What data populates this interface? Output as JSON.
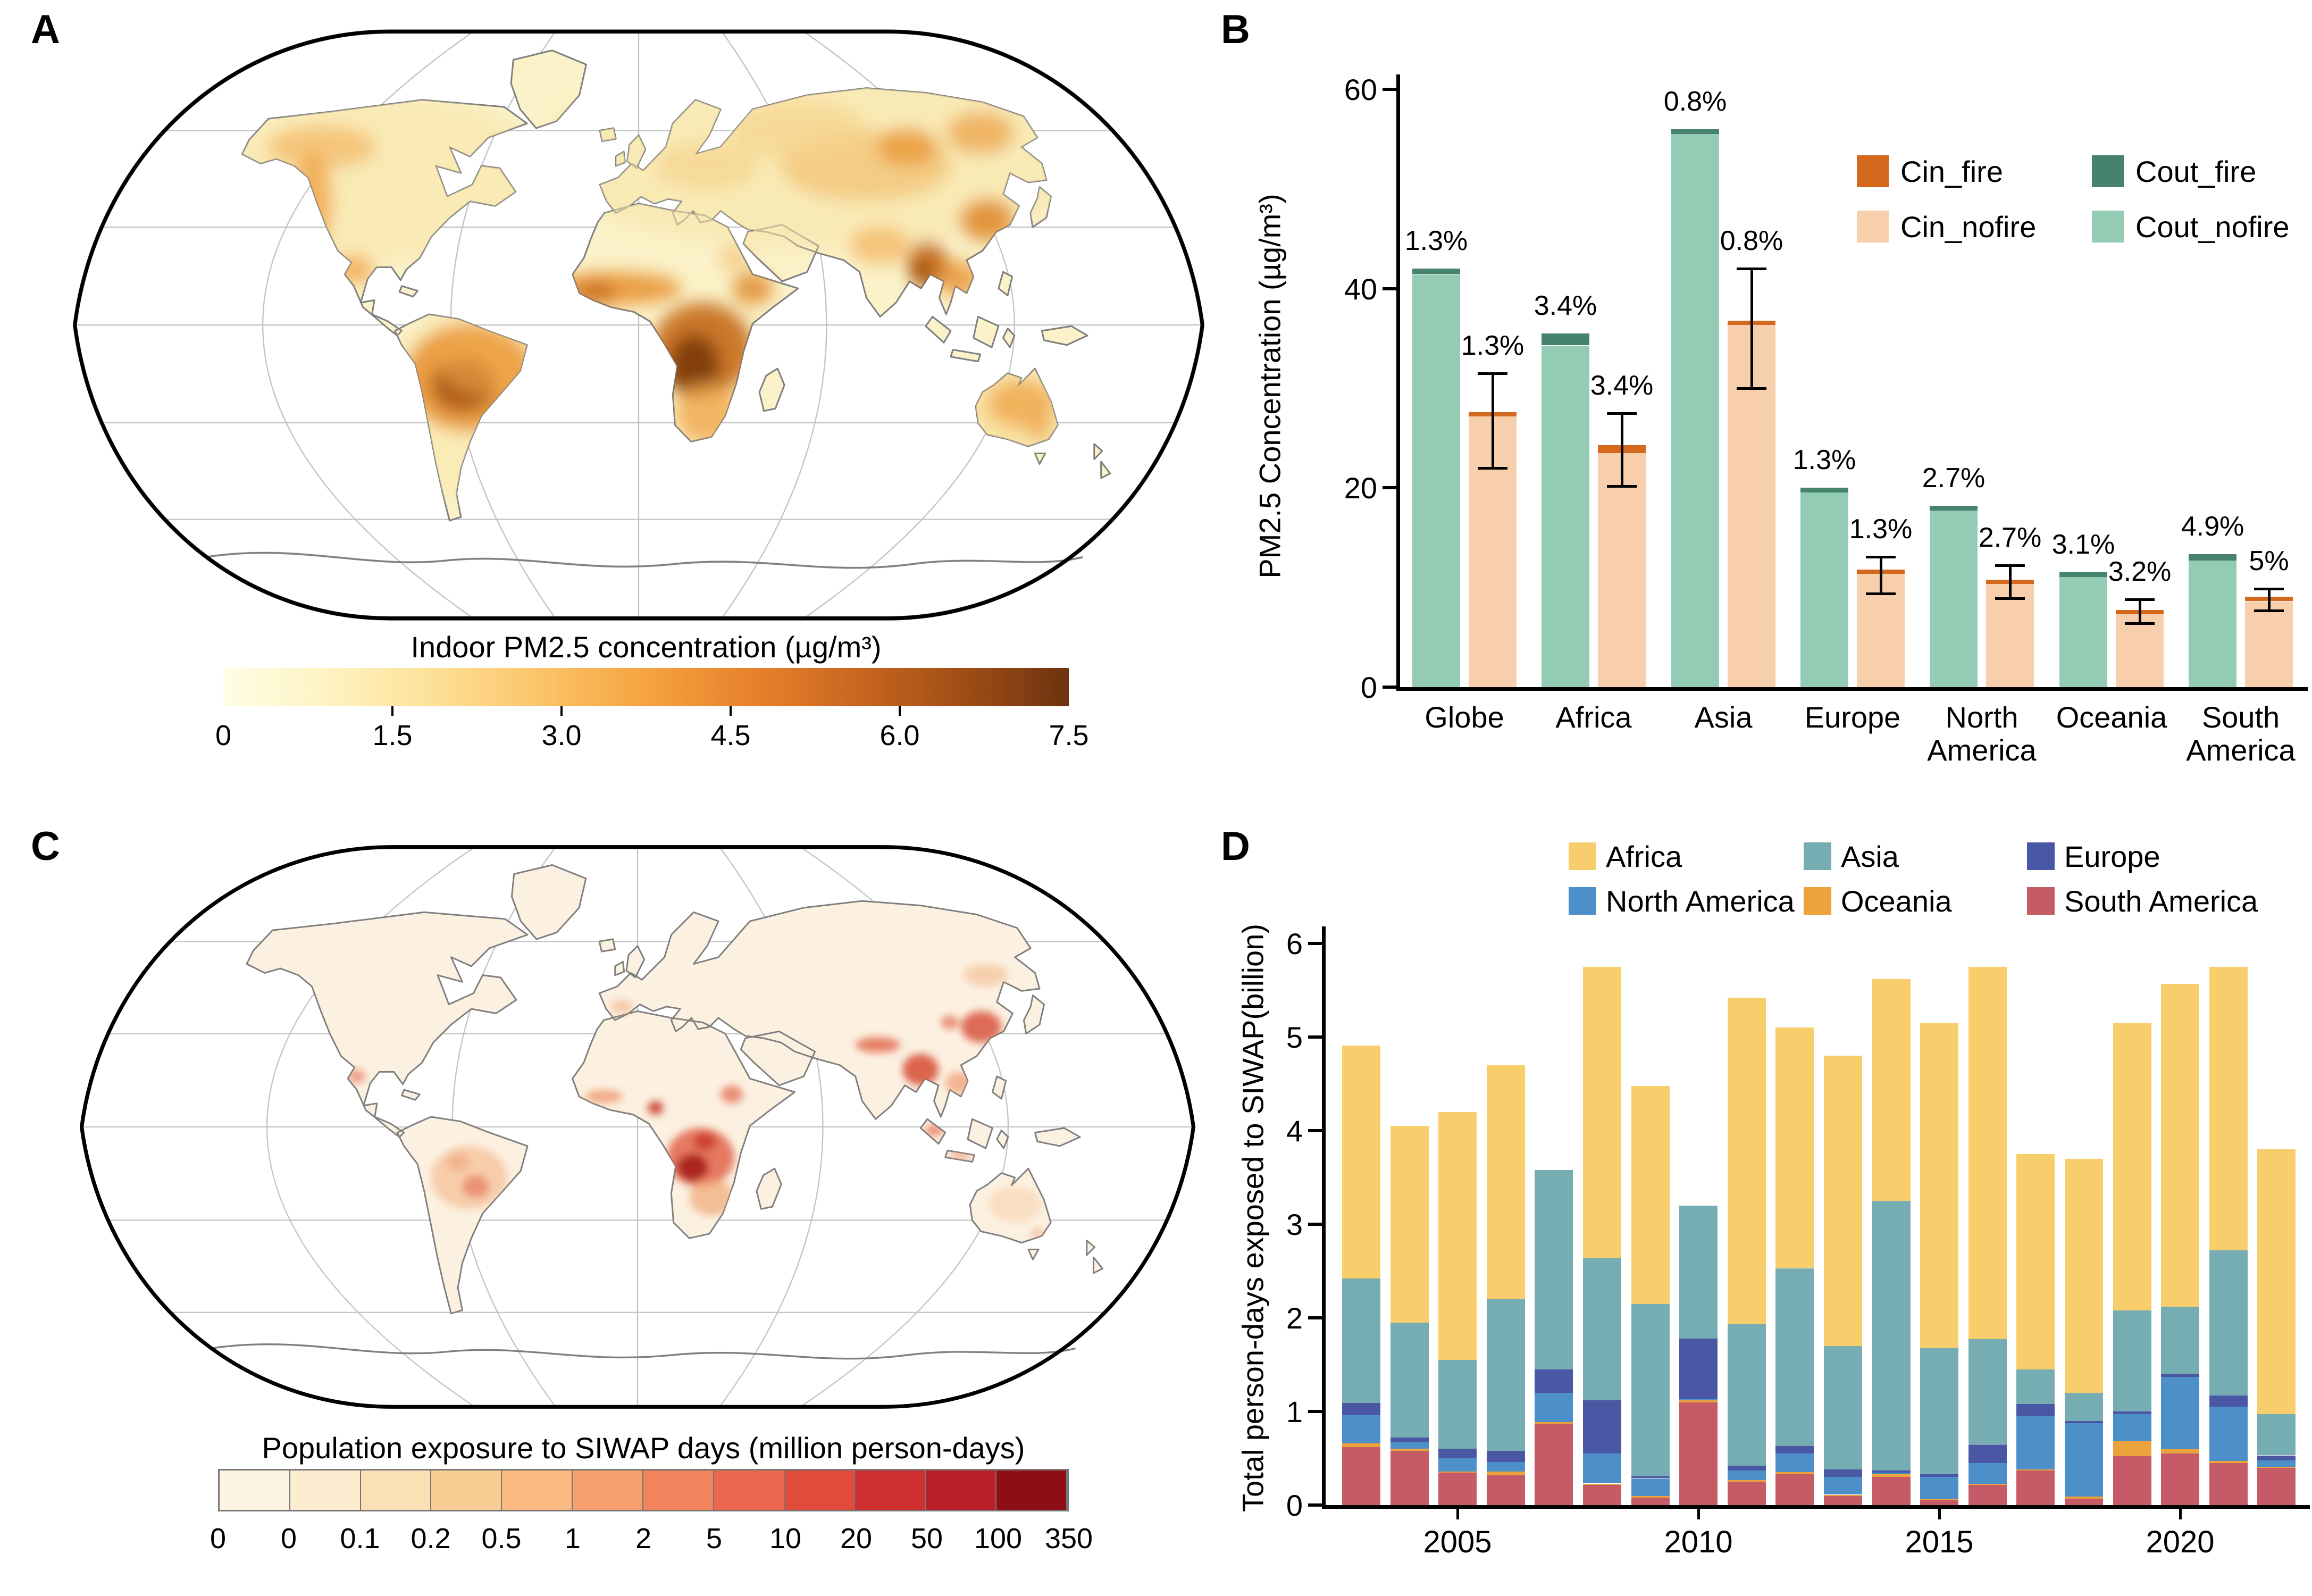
{
  "figure": {
    "panel_labels": {
      "A": "A",
      "B": "B",
      "C": "C",
      "D": "D"
    }
  },
  "panelA": {
    "colorbar_title": "Indoor PM2.5 concentration (µg/m³)",
    "colorbar_ticks": [
      "0",
      "1.5",
      "3.0",
      "4.5",
      "6.0",
      "7.5"
    ],
    "colorbar_gradient": [
      "#FFFDE6",
      "#FEF3C2",
      "#FDE096",
      "#FBC468",
      "#F5A341",
      "#E8822B",
      "#C9661F",
      "#A04E16",
      "#6E3310"
    ]
  },
  "panelC": {
    "colorbar_title": "Population exposure to SIWAP days (million person-days)",
    "colorbar_ticks": [
      "0",
      "0",
      "0.1",
      "0.2",
      "0.5",
      "1",
      "2",
      "5",
      "10",
      "20",
      "50",
      "100",
      "350"
    ],
    "colorbar_colors": [
      "#FDF4E3",
      "#FCEDD1",
      "#FBE0B5",
      "#FACD94",
      "#F9B981",
      "#F69E6D",
      "#F2835C",
      "#EC674D",
      "#E04B3C",
      "#D02F2F",
      "#B81F26",
      "#8F0E16"
    ]
  },
  "chart_data": [
    {
      "type": "bar",
      "panel": "B",
      "title": "",
      "xlabel": "",
      "ylabel": "PM2.5 Concentration (µg/m³)",
      "ylim": [
        0,
        60
      ],
      "yticks": [
        "0",
        "20",
        "40",
        "60"
      ],
      "categories": [
        [
          "Globe"
        ],
        [
          "Africa"
        ],
        [
          "Asia"
        ],
        [
          "Europe"
        ],
        [
          "North",
          "America"
        ],
        [
          "Oceania"
        ],
        [
          "South",
          "America"
        ]
      ],
      "legend": [
        {
          "label": "Cin_fire",
          "color": "#D4691E"
        },
        {
          "label": "Cin_nofire",
          "color": "#F8CFAC"
        },
        {
          "label": "Cout_fire",
          "color": "#46836D"
        },
        {
          "label": "Cout_nofire",
          "color": "#93CBB4"
        }
      ],
      "series": {
        "cout_nofire": [
          41.4,
          34.3,
          55.5,
          19.7,
          17.7,
          11.2,
          12.7
        ],
        "cout_fire": [
          0.6,
          1.2,
          0.5,
          0.3,
          0.5,
          0.35,
          0.65
        ],
        "cin_nofire": [
          27.2,
          23.5,
          36.5,
          11.6,
          10.5,
          7.5,
          8.6
        ],
        "cin_fire": [
          0.4,
          0.8,
          0.3,
          0.2,
          0.3,
          0.25,
          0.45
        ],
        "cin_err_low": [
          22.0,
          20.2,
          30.0,
          9.4,
          8.9,
          6.4,
          7.7
        ],
        "cin_err_high": [
          31.5,
          27.5,
          42.0,
          13.1,
          12.2,
          8.8,
          9.9
        ]
      },
      "bar_labels": {
        "out": [
          "1.3%",
          "3.4%",
          "0.8%",
          "1.3%",
          "2.7%",
          "3.1%",
          "4.9%"
        ],
        "in": [
          "1.3%",
          "3.4%",
          "0.8%",
          "1.3%",
          "2.7%",
          "3.2%",
          "5%"
        ]
      }
    },
    {
      "type": "stacked-bar",
      "panel": "D",
      "title": "",
      "xlabel": "",
      "ylabel": "Total person-days exposed to SIWAP(billion)",
      "ylim": [
        0,
        6
      ],
      "yticks": [
        "0",
        "1",
        "2",
        "3",
        "4",
        "5",
        "6"
      ],
      "years": [
        2003,
        2004,
        2005,
        2006,
        2007,
        2008,
        2009,
        2010,
        2011,
        2012,
        2013,
        2014,
        2015,
        2016,
        2017,
        2018,
        2019,
        2020,
        2021,
        2022
      ],
      "xtick_years": [
        2005,
        2010,
        2015,
        2020
      ],
      "legend": [
        {
          "label": "Africa",
          "color": "#F7CE6B"
        },
        {
          "label": "Asia",
          "color": "#76ADB2"
        },
        {
          "label": "Europe",
          "color": "#4A57A5"
        },
        {
          "label": "North America",
          "color": "#4D8FC9"
        },
        {
          "label": "Oceania",
          "color": "#EDA33C"
        },
        {
          "label": "South America",
          "color": "#C45B66"
        }
      ],
      "stack_order": [
        "South America",
        "Oceania",
        "North America",
        "Europe",
        "Asia",
        "Africa"
      ],
      "series": [
        {
          "name": "Africa",
          "values": [
            2.49,
            2.1,
            2.65,
            2.5,
            0,
            3.11,
            2.33,
            0,
            3.49,
            2.57,
            3.1,
            2.37,
            3.47,
            3.98,
            2.3,
            2.5,
            3.07,
            3.45,
            3.03,
            2.83
          ]
        },
        {
          "name": "Asia",
          "values": [
            1.33,
            1.23,
            0.95,
            1.62,
            2.13,
            1.52,
            1.84,
            1.42,
            1.51,
            1.9,
            1.32,
            2.88,
            1.35,
            1.12,
            0.37,
            0.3,
            1.08,
            0.72,
            1.55,
            0.44
          ]
        },
        {
          "name": "Europe",
          "values": [
            0.13,
            0.05,
            0.1,
            0.12,
            0.25,
            0.57,
            0.03,
            0.64,
            0.05,
            0.08,
            0.08,
            0.02,
            0.03,
            0.2,
            0.13,
            0.02,
            0.03,
            0.03,
            0.12,
            0.05
          ]
        },
        {
          "name": "North America",
          "values": [
            0.3,
            0.07,
            0.14,
            0.1,
            0.31,
            0.32,
            0.18,
            0.02,
            0.1,
            0.2,
            0.19,
            0.02,
            0.24,
            0.22,
            0.57,
            0.79,
            0.29,
            0.77,
            0.58,
            0.07
          ]
        },
        {
          "name": "Oceania",
          "values": [
            0.04,
            0.02,
            0.01,
            0.04,
            0.02,
            0.01,
            0.02,
            0.02,
            0.02,
            0.02,
            0.01,
            0.03,
            0.01,
            0.01,
            0.01,
            0.02,
            0.16,
            0.05,
            0.02,
            0.01
          ]
        },
        {
          "name": "South America",
          "values": [
            0.62,
            0.58,
            0.35,
            0.32,
            0.87,
            0.22,
            0.08,
            1.1,
            0.25,
            0.33,
            0.1,
            0.3,
            0.05,
            0.22,
            0.37,
            0.07,
            0.52,
            0.55,
            0.45,
            0.4
          ]
        }
      ]
    }
  ]
}
